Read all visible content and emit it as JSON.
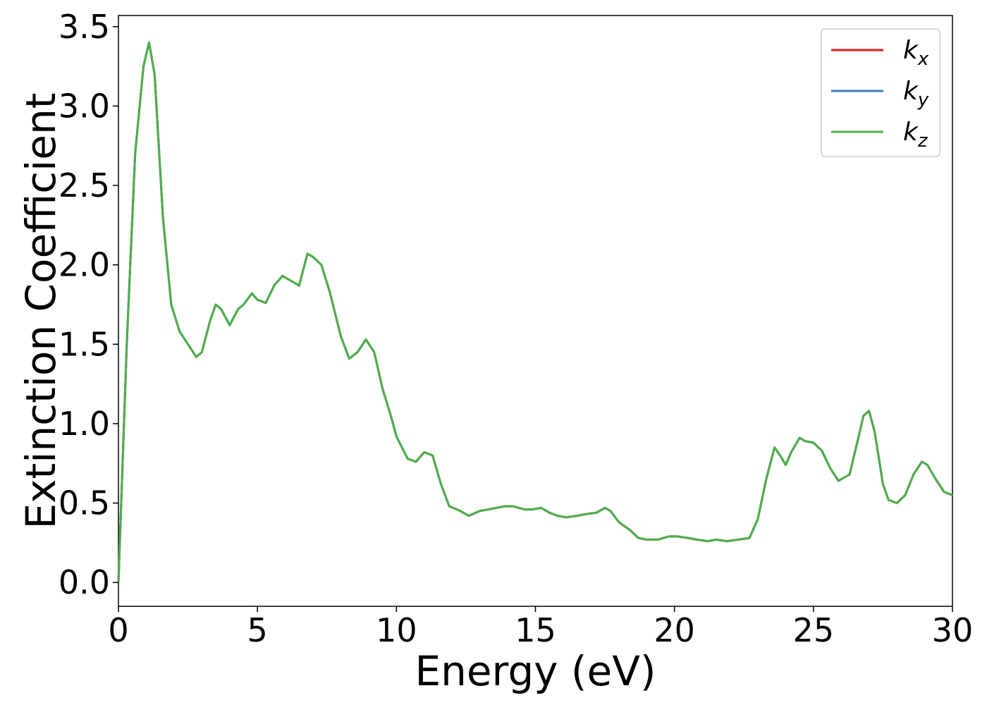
{
  "chart_data": {
    "type": "line",
    "xlabel": "Energy (eV)",
    "ylabel": "Extinction Coefficient",
    "xlim": [
      0,
      30
    ],
    "ylim": [
      -0.15,
      3.57
    ],
    "xticks": [
      0,
      5,
      10,
      15,
      20,
      25,
      30
    ],
    "xtick_labels": [
      "0",
      "5",
      "10",
      "15",
      "20",
      "25",
      "30"
    ],
    "yticks": [
      0.0,
      0.5,
      1.0,
      1.5,
      2.0,
      2.5,
      3.0,
      3.5
    ],
    "ytick_labels": [
      "0.0",
      "0.5",
      "1.0",
      "1.5",
      "2.0",
      "2.5",
      "3.0",
      "3.5"
    ],
    "grid": false,
    "legend_position": "top-right",
    "x": [
      0,
      0.3,
      0.6,
      0.9,
      1.1,
      1.3,
      1.6,
      1.9,
      2.2,
      2.5,
      2.8,
      3.0,
      3.3,
      3.5,
      3.7,
      4.0,
      4.3,
      4.5,
      4.8,
      5.0,
      5.3,
      5.6,
      5.9,
      6.2,
      6.5,
      6.8,
      7.0,
      7.3,
      7.6,
      8.0,
      8.3,
      8.6,
      8.9,
      9.2,
      9.5,
      9.8,
      10.0,
      10.4,
      10.7,
      11.0,
      11.3,
      11.6,
      11.9,
      12.3,
      12.6,
      13.0,
      13.3,
      13.6,
      13.9,
      14.2,
      14.6,
      14.9,
      15.2,
      15.5,
      15.8,
      16.1,
      16.5,
      16.8,
      17.2,
      17.5,
      17.7,
      18.0,
      18.4,
      18.7,
      19.0,
      19.4,
      19.8,
      20.1,
      20.5,
      20.8,
      21.2,
      21.5,
      21.9,
      22.3,
      22.7,
      23.0,
      23.3,
      23.6,
      23.8,
      24.0,
      24.2,
      24.5,
      24.7,
      25.0,
      25.3,
      25.6,
      25.9,
      26.3,
      26.6,
      26.8,
      27.0,
      27.2,
      27.5,
      27.7,
      28.0,
      28.3,
      28.6,
      28.9,
      29.1,
      29.4,
      29.7,
      30.0
    ],
    "series": [
      {
        "name": "k_x",
        "legend_base": "k",
        "legend_sub": "x",
        "color": "#e41a1c",
        "values": [
          0.0,
          1.5,
          2.7,
          3.25,
          3.4,
          3.2,
          2.3,
          1.75,
          1.58,
          1.5,
          1.42,
          1.45,
          1.65,
          1.75,
          1.72,
          1.62,
          1.72,
          1.75,
          1.82,
          1.78,
          1.76,
          1.87,
          1.93,
          1.9,
          1.87,
          2.07,
          2.05,
          2.0,
          1.83,
          1.55,
          1.41,
          1.45,
          1.53,
          1.45,
          1.22,
          1.05,
          0.92,
          0.78,
          0.76,
          0.82,
          0.8,
          0.62,
          0.48,
          0.45,
          0.42,
          0.45,
          0.46,
          0.47,
          0.48,
          0.48,
          0.46,
          0.46,
          0.47,
          0.44,
          0.42,
          0.41,
          0.42,
          0.43,
          0.44,
          0.47,
          0.45,
          0.38,
          0.33,
          0.28,
          0.27,
          0.27,
          0.29,
          0.29,
          0.28,
          0.27,
          0.26,
          0.27,
          0.26,
          0.27,
          0.28,
          0.4,
          0.65,
          0.85,
          0.8,
          0.74,
          0.82,
          0.91,
          0.89,
          0.88,
          0.83,
          0.72,
          0.64,
          0.68,
          0.9,
          1.05,
          1.08,
          0.95,
          0.62,
          0.52,
          0.5,
          0.55,
          0.68,
          0.76,
          0.74,
          0.65,
          0.57,
          0.55
        ]
      },
      {
        "name": "k_y",
        "legend_base": "k",
        "legend_sub": "y",
        "color": "#377eb8",
        "values": [
          0.0,
          1.5,
          2.7,
          3.25,
          3.4,
          3.2,
          2.3,
          1.75,
          1.58,
          1.5,
          1.42,
          1.45,
          1.65,
          1.75,
          1.72,
          1.62,
          1.72,
          1.75,
          1.82,
          1.78,
          1.76,
          1.87,
          1.93,
          1.9,
          1.87,
          2.07,
          2.05,
          2.0,
          1.83,
          1.55,
          1.41,
          1.45,
          1.53,
          1.45,
          1.22,
          1.05,
          0.92,
          0.78,
          0.76,
          0.82,
          0.8,
          0.62,
          0.48,
          0.45,
          0.42,
          0.45,
          0.46,
          0.47,
          0.48,
          0.48,
          0.46,
          0.46,
          0.47,
          0.44,
          0.42,
          0.41,
          0.42,
          0.43,
          0.44,
          0.47,
          0.45,
          0.38,
          0.33,
          0.28,
          0.27,
          0.27,
          0.29,
          0.29,
          0.28,
          0.27,
          0.26,
          0.27,
          0.26,
          0.27,
          0.28,
          0.4,
          0.65,
          0.85,
          0.8,
          0.74,
          0.82,
          0.91,
          0.89,
          0.88,
          0.83,
          0.72,
          0.64,
          0.68,
          0.9,
          1.05,
          1.08,
          0.95,
          0.62,
          0.52,
          0.5,
          0.55,
          0.68,
          0.76,
          0.74,
          0.65,
          0.57,
          0.55
        ]
      },
      {
        "name": "k_z",
        "legend_base": "k",
        "legend_sub": "z",
        "color": "#4daf4a",
        "values": [
          0.0,
          1.5,
          2.7,
          3.25,
          3.4,
          3.2,
          2.3,
          1.75,
          1.58,
          1.5,
          1.42,
          1.45,
          1.65,
          1.75,
          1.72,
          1.62,
          1.72,
          1.75,
          1.82,
          1.78,
          1.76,
          1.87,
          1.93,
          1.9,
          1.87,
          2.07,
          2.05,
          2.0,
          1.83,
          1.55,
          1.41,
          1.45,
          1.53,
          1.45,
          1.22,
          1.05,
          0.92,
          0.78,
          0.76,
          0.82,
          0.8,
          0.62,
          0.48,
          0.45,
          0.42,
          0.45,
          0.46,
          0.47,
          0.48,
          0.48,
          0.46,
          0.46,
          0.47,
          0.44,
          0.42,
          0.41,
          0.42,
          0.43,
          0.44,
          0.47,
          0.45,
          0.38,
          0.33,
          0.28,
          0.27,
          0.27,
          0.29,
          0.29,
          0.28,
          0.27,
          0.26,
          0.27,
          0.26,
          0.27,
          0.28,
          0.4,
          0.65,
          0.85,
          0.8,
          0.74,
          0.82,
          0.91,
          0.89,
          0.88,
          0.83,
          0.72,
          0.64,
          0.68,
          0.9,
          1.05,
          1.08,
          0.95,
          0.62,
          0.52,
          0.5,
          0.55,
          0.68,
          0.76,
          0.74,
          0.65,
          0.57,
          0.55
        ]
      }
    ]
  }
}
